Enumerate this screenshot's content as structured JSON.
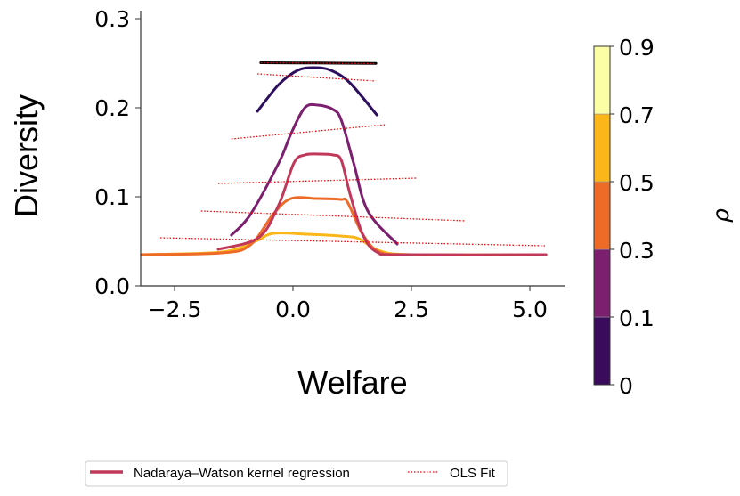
{
  "chart_data": {
    "type": "line",
    "xlabel": "Welfare",
    "ylabel": "Diversity",
    "xlim": [
      -3.2,
      5.73
    ],
    "ylim": [
      0,
      0.307
    ],
    "x_ticks": [
      {
        "v": -2.5,
        "label": "−2.5"
      },
      {
        "v": 0,
        "label": "0.0"
      },
      {
        "v": 2.5,
        "label": "2.5"
      },
      {
        "v": 5,
        "label": "5.0"
      }
    ],
    "y_ticks": [
      {
        "v": 0,
        "label": "0.0"
      },
      {
        "v": 0.1,
        "label": "0.1"
      },
      {
        "v": 0.2,
        "label": "0.2"
      },
      {
        "v": 0.3,
        "label": "0.3"
      }
    ],
    "grid": false,
    "series": [
      {
        "name": "kernel-black",
        "color": "#000000",
        "points": [
          [
            -0.68,
            0.2505
          ],
          [
            0.5,
            0.2502
          ],
          [
            1.75,
            0.2498
          ]
        ]
      },
      {
        "name": "kernel-dark-purple",
        "color": "#2c0f5e",
        "points": [
          [
            -0.75,
            0.196
          ],
          [
            -0.3,
            0.226
          ],
          [
            0.1,
            0.242
          ],
          [
            0.45,
            0.245
          ],
          [
            0.8,
            0.242
          ],
          [
            1.2,
            0.228
          ],
          [
            1.77,
            0.192
          ]
        ]
      },
      {
        "name": "kernel-purple",
        "color": "#7b1f6e",
        "points": [
          [
            -1.3,
            0.057
          ],
          [
            -0.9,
            0.08
          ],
          [
            -0.3,
            0.138
          ],
          [
            -0.04,
            0.171
          ],
          [
            0.25,
            0.2
          ],
          [
            0.53,
            0.203
          ],
          [
            0.85,
            0.198
          ],
          [
            1.02,
            0.186
          ],
          [
            1.28,
            0.138
          ],
          [
            1.58,
            0.084
          ],
          [
            2.2,
            0.047
          ]
        ]
      },
      {
        "name": "kernel-crimson",
        "color": "#c0395a",
        "points": [
          [
            -1.58,
            0.041
          ],
          [
            -0.73,
            0.054
          ],
          [
            -0.3,
            0.091
          ],
          [
            0.02,
            0.138
          ],
          [
            0.25,
            0.147
          ],
          [
            0.53,
            0.148
          ],
          [
            0.85,
            0.147
          ],
          [
            1.02,
            0.141
          ],
          [
            1.2,
            0.104
          ],
          [
            1.47,
            0.058
          ],
          [
            1.77,
            0.038
          ],
          [
            2.3,
            0.035
          ],
          [
            5.34,
            0.035
          ]
        ]
      },
      {
        "name": "kernel-orange",
        "color": "#ee6a27",
        "points": [
          [
            -3.2,
            0.035
          ],
          [
            -1.5,
            0.037
          ],
          [
            -0.9,
            0.046
          ],
          [
            -0.41,
            0.081
          ],
          [
            -0.04,
            0.098
          ],
          [
            0.5,
            0.098
          ],
          [
            1.0,
            0.097
          ],
          [
            1.15,
            0.094
          ],
          [
            1.47,
            0.058
          ],
          [
            1.83,
            0.038
          ],
          [
            2.5,
            0.035
          ],
          [
            5.34,
            0.035
          ]
        ]
      },
      {
        "name": "kernel-yellow",
        "color": "#fbb61a",
        "points": [
          [
            -3.2,
            0.035
          ],
          [
            -1.5,
            0.038
          ],
          [
            -0.8,
            0.05
          ],
          [
            -0.41,
            0.059
          ],
          [
            0.3,
            0.058
          ],
          [
            1.0,
            0.056
          ],
          [
            1.39,
            0.053
          ],
          [
            1.8,
            0.04
          ],
          [
            2.5,
            0.035
          ],
          [
            5.34,
            0.035
          ]
        ]
      }
    ],
    "ols_fits": [
      [
        [
          -0.68,
          0.2505
        ],
        [
          1.75,
          0.2495
        ]
      ],
      [
        [
          -0.75,
          0.238
        ],
        [
          1.75,
          0.23
        ]
      ],
      [
        [
          -1.3,
          0.165
        ],
        [
          1.96,
          0.181
        ]
      ],
      [
        [
          -1.58,
          0.115
        ],
        [
          2.61,
          0.121
        ]
      ],
      [
        [
          -1.94,
          0.084
        ],
        [
          3.65,
          0.073
        ]
      ],
      [
        [
          -2.8,
          0.054
        ],
        [
          5.32,
          0.045
        ]
      ]
    ],
    "ols_color": "#ff0000",
    "colorbar": {
      "label": "ρ",
      "bins": [
        {
          "from": "0",
          "to": "0.1",
          "color": "#3a0a5c"
        },
        {
          "from": "0.1",
          "to": "0.3",
          "color": "#7b1f6e"
        },
        {
          "from": "0.3",
          "to": "0.5",
          "color": "#ee6a27"
        },
        {
          "from": "0.5",
          "to": "0.7",
          "color": "#fbb61a"
        },
        {
          "from": "0.7",
          "to": "0.9",
          "color": "#fbfea4"
        }
      ],
      "tick_labels": [
        "0",
        "0.1",
        "0.3",
        "0.5",
        "0.7",
        "0.9"
      ]
    },
    "legend": {
      "placement": "bottom",
      "entries": [
        {
          "label": "Nadaraya–Watson kernel regression",
          "color": "#c0395a",
          "style": "solid"
        },
        {
          "label": "OLS Fit",
          "color": "#ff0000",
          "style": "dotted"
        }
      ]
    }
  }
}
